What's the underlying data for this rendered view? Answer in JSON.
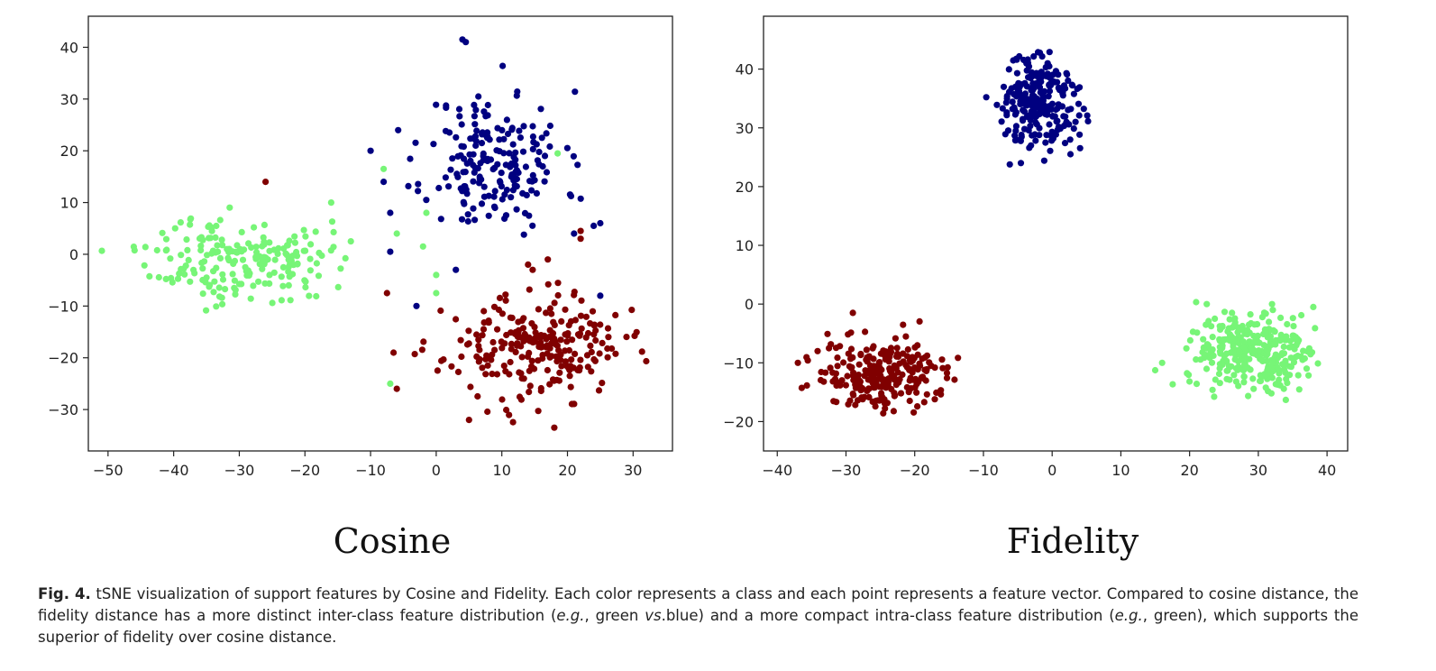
{
  "chart_data": [
    {
      "type": "scatter",
      "title": "",
      "subtitle": "Cosine",
      "xlabel": "",
      "ylabel": "",
      "xlim": [
        -53,
        36
      ],
      "ylim": [
        -38,
        46
      ],
      "xticks": [
        -50,
        -40,
        -30,
        -20,
        -10,
        0,
        10,
        20,
        30
      ],
      "yticks": [
        -30,
        -20,
        -10,
        0,
        10,
        20,
        30,
        40
      ],
      "xtick_labels": [
        "−50",
        "−40",
        "−30",
        "−20",
        "−10",
        "0",
        "10",
        "20",
        "30"
      ],
      "ytick_labels": [
        "−30",
        "−20",
        "−10",
        "0",
        "10",
        "20",
        "30",
        "40"
      ],
      "grid": false,
      "series": [
        {
          "color": "#000080",
          "clusters": [
            {
              "center": [
                9,
                18
              ],
              "spread": [
                7,
                9
              ],
              "count": 190,
              "seed": 11
            }
          ],
          "extra_points": [
            [
              4,
              41.5
            ],
            [
              4.5,
              41
            ],
            [
              -10,
              20
            ],
            [
              -8,
              14
            ],
            [
              -7,
              8
            ],
            [
              -7,
              0.5
            ],
            [
              24,
              5.5
            ],
            [
              25,
              6
            ],
            [
              -3,
              -10
            ],
            [
              3,
              -3
            ],
            [
              21,
              4
            ],
            [
              25,
              -8
            ]
          ]
        },
        {
          "color": "#800000",
          "clusters": [
            {
              "center": [
                15,
                -18
              ],
              "spread": [
                9,
                6.5
              ],
              "count": 240,
              "seed": 23
            }
          ],
          "extra_points": [
            [
              -26,
              14
            ],
            [
              -7.5,
              -7.5
            ],
            [
              -6.5,
              -19
            ],
            [
              -6,
              -26
            ],
            [
              5,
              -32
            ],
            [
              18,
              -33.5
            ],
            [
              22,
              4.5
            ],
            [
              22,
              3
            ],
            [
              17,
              -1
            ],
            [
              14,
              -2
            ]
          ]
        },
        {
          "color": "#77f577",
          "clusters": [
            {
              "center": [
                -30,
                -1
              ],
              "spread": [
                9,
                5.5
              ],
              "count": 200,
              "seed": 37
            }
          ],
          "extra_points": [
            [
              -8,
              16.5
            ],
            [
              18.5,
              19.5
            ],
            [
              -1.5,
              8
            ],
            [
              -6,
              4
            ],
            [
              -2,
              1.5
            ],
            [
              0,
              -4
            ],
            [
              0,
              -7.5
            ],
            [
              -7,
              -25
            ],
            [
              -16,
              10
            ],
            [
              -13,
              2.5
            ]
          ]
        }
      ]
    },
    {
      "type": "scatter",
      "title": "",
      "subtitle": "Fidelity",
      "xlabel": "",
      "ylabel": "",
      "xlim": [
        -42,
        43
      ],
      "ylim": [
        -25,
        49
      ],
      "xticks": [
        -40,
        -30,
        -20,
        -10,
        0,
        10,
        20,
        30,
        40
      ],
      "yticks": [
        -20,
        -10,
        0,
        10,
        20,
        30,
        40
      ],
      "xtick_labels": [
        "−40",
        "−30",
        "−20",
        "−10",
        "0",
        "10",
        "20",
        "30",
        "40"
      ],
      "ytick_labels": [
        "−20",
        "−10",
        "0",
        "10",
        "20",
        "30",
        "40"
      ],
      "grid": false,
      "series": [
        {
          "color": "#000080",
          "clusters": [
            {
              "center": [
                -2,
                34
              ],
              "spread": [
                4,
                5.5
              ],
              "count": 240,
              "seed": 51
            }
          ],
          "extra_points": []
        },
        {
          "color": "#800000",
          "clusters": [
            {
              "center": [
                -25,
                -12
              ],
              "spread": [
                5.5,
                4
              ],
              "count": 260,
              "seed": 63
            }
          ],
          "extra_points": [
            [
              -37,
              -10
            ],
            [
              -29,
              -1.5
            ]
          ]
        },
        {
          "color": "#77f577",
          "clusters": [
            {
              "center": [
                29,
                -8
              ],
              "spread": [
                6,
                4.2
              ],
              "count": 320,
              "seed": 79
            }
          ],
          "extra_points": [
            [
              16,
              -10
            ],
            [
              22.5,
              0
            ],
            [
              32,
              0
            ],
            [
              38,
              -0.5
            ]
          ]
        }
      ]
    }
  ],
  "caption": {
    "label": "Fig. 4.",
    "text_1": " tSNE visualization of support features by Cosine and Fidelity. Each color represents a class and each point represents a feature vector. Compared to cosine distance, the fidelity distance has a more distinct inter-class feature distribution (",
    "eg_1": "e.g.",
    "text_2": ", green ",
    "vs": "vs",
    "text_3": ".blue) and a more compact intra-class feature distribution (",
    "eg_2": "e.g.",
    "text_4": ", green), which supports the superior of fidelity over cosine distance."
  }
}
